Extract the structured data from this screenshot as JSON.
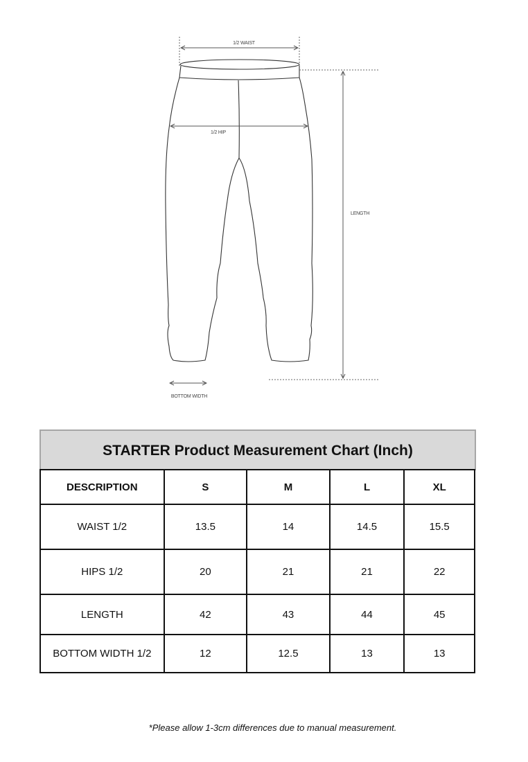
{
  "diagram": {
    "labels": {
      "waist": "1/2 WAIST",
      "hip": "1/2 HIP",
      "length": "LENGTH",
      "bottom": "BOTTOM WIDTH"
    }
  },
  "table": {
    "title": "STARTER Product Measurement Chart (Inch)",
    "headers": [
      "DESCRIPTION",
      "S",
      "M",
      "L",
      "XL"
    ],
    "rows": [
      [
        "WAIST 1/2",
        "13.5",
        "14",
        "14.5",
        "15.5"
      ],
      [
        "HIPS 1/2",
        "20",
        "21",
        "21",
        "22"
      ],
      [
        "LENGTH",
        "42",
        "43",
        "44",
        "45"
      ],
      [
        "BOTTOM WIDTH 1/2",
        "12",
        "12.5",
        "13",
        "13"
      ]
    ]
  },
  "note": "*Please allow 1-3cm differences due to manual measurement."
}
